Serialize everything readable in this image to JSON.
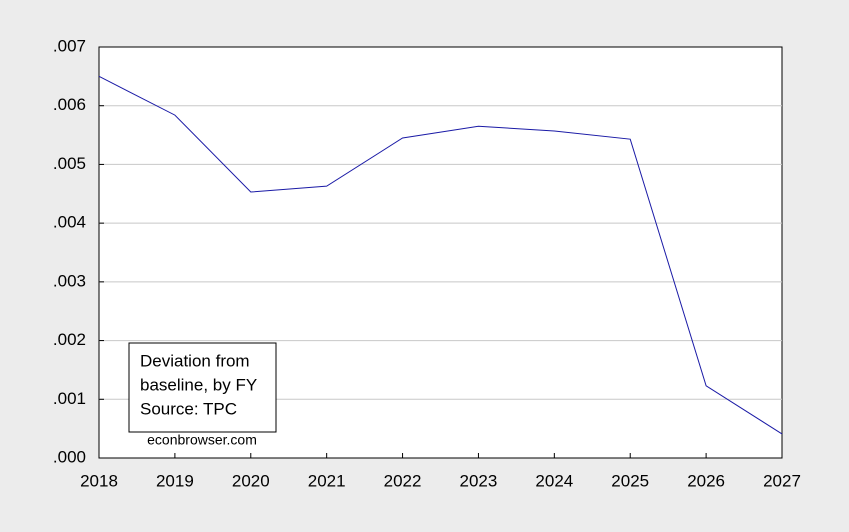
{
  "chart_data": {
    "type": "line",
    "x": [
      2018,
      2019,
      2020,
      2021,
      2022,
      2023,
      2024,
      2025,
      2026,
      2027
    ],
    "series": [
      {
        "color": "#1a1aa6",
        "values": [
          0.0065,
          0.00584,
          0.00453,
          0.00463,
          0.00545,
          0.00565,
          0.00557,
          0.00543,
          0.00123,
          0.00041
        ]
      }
    ],
    "xlim": [
      2018,
      2027
    ],
    "xticks": [
      2018,
      2019,
      2020,
      2021,
      2022,
      2023,
      2024,
      2025,
      2026,
      2027
    ],
    "ylim": [
      0,
      0.007
    ],
    "yticks": [
      {
        "value": 0,
        "label": ".000"
      },
      {
        "value": 0.001,
        "label": ".001"
      },
      {
        "value": 0.002,
        "label": ".002"
      },
      {
        "value": 0.003,
        "label": ".003"
      },
      {
        "value": 0.004,
        "label": ".004"
      },
      {
        "value": 0.005,
        "label": ".005"
      },
      {
        "value": 0.006,
        "label": ".006"
      },
      {
        "value": 0.007,
        "label": ".007"
      }
    ],
    "grid": true,
    "annotation": [
      "Deviation from",
      "baseline, by FY",
      "Source: TPC"
    ],
    "watermark": "econbrowser.com"
  }
}
